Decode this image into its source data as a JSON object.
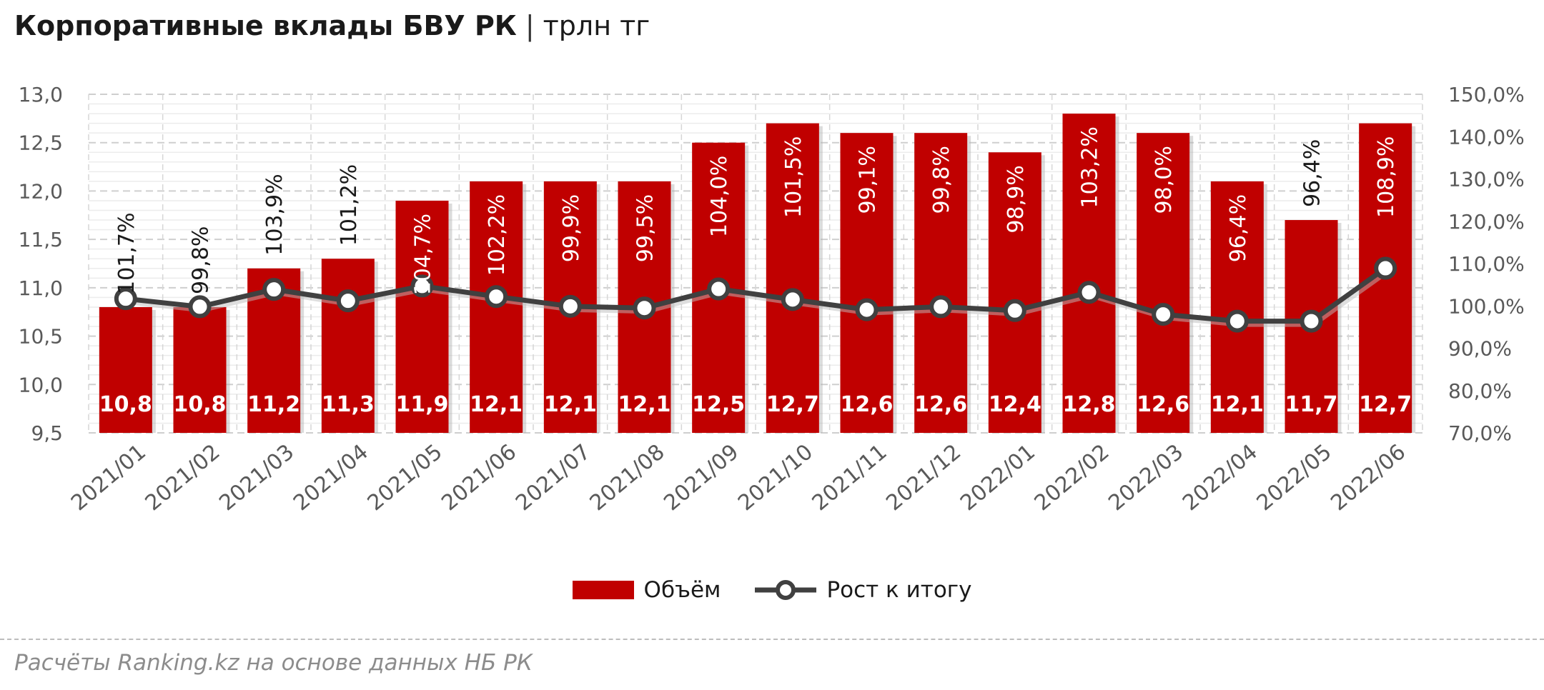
{
  "title": {
    "main": "Корпоративные вклады БВУ РК",
    "separator": "|",
    "unit": "трлн тг"
  },
  "legend": {
    "bars": "Объём",
    "line": "Рост к итогу"
  },
  "source": "Расчёты Ranking.kz на основе данных НБ РК",
  "colors": {
    "bar": "#c00000",
    "line": "#404040",
    "marker_fill": "#ffffff",
    "grid": "#d9d9d9"
  },
  "chart_data": {
    "type": "bar",
    "categories": [
      "2021/01",
      "2021/02",
      "2021/03",
      "2021/04",
      "2021/05",
      "2021/06",
      "2021/07",
      "2021/08",
      "2021/09",
      "2021/10",
      "2021/11",
      "2021/12",
      "2022/01",
      "2022/02",
      "2022/03",
      "2022/04",
      "2022/05",
      "2022/06"
    ],
    "series": [
      {
        "name": "Объём",
        "type": "bar",
        "axis": "left",
        "values": [
          10.8,
          10.8,
          11.2,
          11.3,
          11.9,
          12.1,
          12.1,
          12.1,
          12.5,
          12.7,
          12.6,
          12.6,
          12.4,
          12.8,
          12.6,
          12.1,
          11.7,
          12.7
        ],
        "labels": [
          "10,8",
          "10,8",
          "11,2",
          "11,3",
          "11,9",
          "12,1",
          "12,1",
          "12,1",
          "12,5",
          "12,7",
          "12,6",
          "12,6",
          "12,4",
          "12,8",
          "12,6",
          "12,1",
          "11,7",
          "12,7"
        ]
      },
      {
        "name": "Рост к итогу",
        "type": "line",
        "axis": "right",
        "values": [
          101.7,
          99.8,
          103.9,
          101.2,
          104.7,
          102.2,
          99.9,
          99.5,
          104.0,
          101.5,
          99.1,
          99.8,
          98.9,
          103.2,
          98.0,
          96.4,
          96.4,
          108.9
        ],
        "labels": [
          "101,7%",
          "99,8%",
          "103,9%",
          "101,2%",
          "104,7%",
          "102,2%",
          "99,9%",
          "99,5%",
          "104,0%",
          "101,5%",
          "99,1%",
          "99,8%",
          "98,9%",
          "103,2%",
          "98,0%",
          "96,4%",
          "96,4%",
          "108,9%"
        ]
      }
    ],
    "y_left": {
      "min": 9.5,
      "max": 13.0,
      "ticks": [
        "9,5",
        "10,0",
        "10,5",
        "11,0",
        "11,5",
        "12,0",
        "12,5",
        "13,0"
      ]
    },
    "y_right": {
      "min": 70,
      "max": 150,
      "ticks": [
        "70,0%",
        "80,0%",
        "90,0%",
        "100,0%",
        "110,0%",
        "120,0%",
        "130,0%",
        "140,0%",
        "150,0%"
      ]
    },
    "grid": true,
    "legend_position": "bottom"
  }
}
